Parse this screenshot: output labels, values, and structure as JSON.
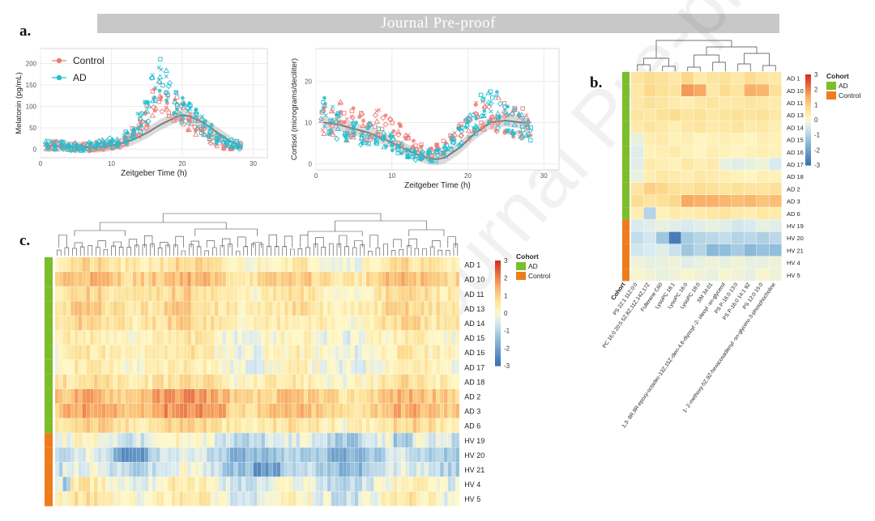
{
  "header": {
    "banner": "Journal Pre-proof"
  },
  "labels": {
    "a": "a.",
    "b": "b.",
    "c": "c."
  },
  "watermark": "Journal Pre-proof",
  "chart_data": [
    {
      "id": "melatonin",
      "type": "scatter",
      "xlabel": "Zeitgeber Time (h)",
      "ylabel": "Melatonin (pg/mL)",
      "xlim": [
        0,
        32
      ],
      "ylim": [
        -20,
        235
      ],
      "xticks": [
        0,
        10,
        20,
        30
      ],
      "yticks": [
        0,
        50,
        100,
        150,
        200
      ],
      "legend_position": "top-left",
      "series": [
        {
          "name": "Control",
          "color": "#f07a74",
          "x": [
            1,
            2,
            3,
            4,
            5,
            6,
            7,
            8,
            9,
            10,
            11,
            12,
            13,
            14,
            15,
            16,
            17,
            18,
            19,
            20,
            21,
            22,
            23,
            24,
            25,
            26,
            27,
            28
          ],
          "y": [
            8,
            10,
            9,
            7,
            6,
            5,
            6,
            8,
            10,
            12,
            15,
            25,
            35,
            50,
            75,
            110,
            125,
            105,
            95,
            80,
            65,
            55,
            45,
            30,
            20,
            12,
            9,
            7
          ]
        },
        {
          "name": "AD",
          "color": "#1fbfd1",
          "x": [
            1,
            2,
            3,
            4,
            5,
            6,
            7,
            8,
            9,
            10,
            11,
            12,
            13,
            14,
            15,
            16,
            17,
            18,
            19,
            20,
            21,
            22,
            23,
            24,
            25,
            26,
            27,
            28
          ],
          "y": [
            12,
            10,
            8,
            7,
            5,
            6,
            7,
            9,
            11,
            14,
            18,
            28,
            40,
            60,
            90,
            150,
            180,
            140,
            110,
            95,
            85,
            70,
            55,
            40,
            28,
            18,
            12,
            9
          ]
        }
      ],
      "trend": {
        "x": [
          1,
          3,
          5,
          7,
          9,
          11,
          13,
          15,
          17,
          19,
          20,
          21,
          23,
          25,
          27,
          28
        ],
        "y": [
          8,
          7,
          5,
          4,
          6,
          12,
          22,
          38,
          58,
          74,
          80,
          77,
          62,
          38,
          16,
          8
        ]
      }
    },
    {
      "id": "cortisol",
      "type": "scatter",
      "xlabel": "Zeitgeber Time (h)",
      "ylabel": "Cortisol (micrograms/deciliter)",
      "xlim": [
        0,
        32
      ],
      "ylim": [
        -1.5,
        28
      ],
      "xticks": [
        0,
        10,
        20,
        30
      ],
      "yticks": [
        0,
        10,
        20
      ],
      "series": [
        {
          "name": "Control",
          "color": "#f07a74",
          "x": [
            1,
            2,
            3,
            4,
            5,
            6,
            7,
            8,
            9,
            10,
            11,
            12,
            13,
            14,
            15,
            16,
            17,
            18,
            19,
            20,
            21,
            22,
            23,
            24,
            25,
            26,
            27,
            28
          ],
          "y": [
            11,
            10,
            12,
            9,
            10,
            9,
            8,
            10,
            9,
            8,
            7,
            5,
            4,
            3,
            3,
            3,
            4,
            6,
            7,
            9,
            11,
            12,
            13,
            12,
            11,
            10,
            10,
            9
          ]
        },
        {
          "name": "AD",
          "color": "#1fbfd1",
          "x": [
            1,
            2,
            3,
            4,
            5,
            6,
            7,
            8,
            9,
            10,
            11,
            12,
            13,
            14,
            15,
            16,
            17,
            18,
            19,
            20,
            21,
            22,
            23,
            24,
            25,
            26,
            27,
            28
          ],
          "y": [
            13,
            11,
            9,
            8,
            8,
            7,
            7,
            6,
            6,
            5,
            4,
            3,
            2,
            2,
            2,
            2,
            3,
            5,
            7,
            9,
            11,
            13,
            14,
            13,
            11,
            10,
            9,
            8
          ]
        }
      ],
      "trend": {
        "x": [
          1,
          3,
          5,
          7,
          9,
          11,
          13,
          15,
          16,
          17,
          19,
          21,
          23,
          25,
          27,
          28
        ],
        "y": [
          10,
          9.5,
          8.5,
          7.5,
          6,
          4.2,
          2.5,
          1.2,
          1.1,
          1.5,
          4,
          7.5,
          10,
          10.5,
          10,
          10
        ]
      }
    },
    {
      "id": "heatmap_b",
      "type": "heatmap",
      "rows": [
        "AD 1",
        "AD 10",
        "AD 11",
        "AD 13",
        "AD 14",
        "AD 15",
        "AD 16",
        "AD 17",
        "AD 18",
        "AD 2",
        "AD 3",
        "AD 6",
        "HV 19",
        "HV 20",
        "HV 21",
        "HV 4",
        "HV 5"
      ],
      "row_groups": [
        "AD",
        "AD",
        "AD",
        "AD",
        "AD",
        "AD",
        "AD",
        "AD",
        "AD",
        "AD",
        "AD",
        "AD",
        "Control",
        "Control",
        "Control",
        "Control",
        "Control"
      ],
      "columns": [
        "PS 22:1 11Z:0:0",
        "PC 16:0 20:5 5Z,8Z,11Z,14Z,17Z",
        "Fullerene C60",
        "LysoPC 18:1",
        "LysoPC 16:0",
        "LysoPC 18:0",
        "SM 34:01",
        "1,3- 8R,9R-epoxy-octadec-13Z,15Z-dien-4,6-diynoyl -2- oleoyl -sn-glycerol",
        "PS P-16:0 13:0",
        "PS P-16:0 14:1 9Z",
        "PS 12:0 15:0",
        "1- 2-methoxy-5Z,9Z-hexacosadienyl -sn-glycero-3-phosphocholine"
      ],
      "cohort_axis_label": "Cohort",
      "color_scale": {
        "min": -3,
        "max": 3,
        "ticks": [
          3,
          2,
          1,
          0,
          -1,
          -2,
          -3
        ]
      },
      "legend": {
        "title": "Cohort",
        "items": [
          "AD",
          "Control"
        ]
      },
      "values": [
        [
          0.6,
          0.8,
          0.7,
          0.5,
          0.9,
          0.4,
          0.6,
          0.7,
          0.5,
          0.8,
          0.6,
          0.5
        ],
        [
          0.5,
          0.9,
          0.7,
          0.6,
          1.8,
          1.6,
          0.5,
          0.8,
          0.6,
          1.5,
          1.4,
          0.7
        ],
        [
          0.5,
          0.7,
          0.6,
          0.4,
          0.3,
          0.5,
          0.6,
          0.4,
          0.5,
          0.6,
          0.5,
          0.4
        ],
        [
          0.6,
          0.5,
          0.7,
          0.8,
          0.6,
          0.7,
          0.5,
          0.6,
          0.7,
          0.6,
          0.7,
          0.5
        ],
        [
          0.4,
          0.6,
          0.5,
          0.3,
          0.5,
          0.6,
          0.4,
          0.5,
          0.6,
          0.4,
          0.5,
          0.3
        ],
        [
          -0.3,
          0.3,
          0.4,
          0.2,
          0.3,
          0.1,
          0.2,
          0.3,
          0.2,
          0.1,
          0.3,
          0.2
        ],
        [
          -0.4,
          0.2,
          0.3,
          0.4,
          0.2,
          0.1,
          0.3,
          0.2,
          0.1,
          0.2,
          0.3,
          0.2
        ],
        [
          -0.4,
          0.4,
          0.3,
          0.2,
          0.5,
          0.3,
          0.4,
          -0.3,
          -0.4,
          -0.3,
          -0.2,
          -0.5
        ],
        [
          -0.3,
          0.3,
          0.5,
          0.4,
          0.3,
          0.5,
          0.4,
          0.3,
          0.2,
          0.1,
          0.3,
          0.2
        ],
        [
          0.6,
          1.0,
          0.9,
          0.7,
          0.6,
          0.8,
          0.7,
          0.6,
          0.7,
          0.6,
          0.6,
          0.7
        ],
        [
          0.8,
          0.6,
          0.7,
          0.9,
          1.6,
          1.5,
          1.5,
          1.4,
          1.3,
          1.4,
          1.2,
          1.3
        ],
        [
          0.3,
          -1.0,
          0.2,
          0.4,
          0.3,
          0.4,
          0.5,
          0.6,
          0.4,
          0.3,
          0.5,
          0.4
        ],
        [
          -0.5,
          -0.4,
          -0.3,
          -0.4,
          -0.5,
          -0.4,
          -0.3,
          -0.4,
          -0.6,
          -0.5,
          -0.3,
          -0.4
        ],
        [
          -0.8,
          -0.6,
          -1.3,
          -2.8,
          -1.2,
          -1.0,
          -0.9,
          -0.8,
          -1.0,
          -0.9,
          -1.1,
          -0.9
        ],
        [
          -0.6,
          -0.5,
          -0.4,
          -0.7,
          -1.3,
          -1.0,
          -1.6,
          -1.5,
          -1.2,
          -1.6,
          -1.4,
          -1.5
        ],
        [
          -0.2,
          -0.3,
          -0.3,
          -0.2,
          -0.4,
          -0.3,
          -0.2,
          -0.3,
          -0.2,
          -0.3,
          -0.3,
          -0.2
        ],
        [
          -0.1,
          -0.2,
          -0.3,
          -0.2,
          -0.1,
          -0.2,
          -0.3,
          -0.1,
          -0.2,
          -0.3,
          -0.1,
          -0.2
        ]
      ]
    },
    {
      "id": "heatmap_c",
      "type": "heatmap",
      "rows": [
        "AD 1",
        "AD 10",
        "AD 11",
        "AD 13",
        "AD 14",
        "AD 15",
        "AD 16",
        "AD 17",
        "AD 18",
        "AD 2",
        "AD 3",
        "AD 6",
        "HV 19",
        "HV 20",
        "HV 21",
        "HV 4",
        "HV 5"
      ],
      "row_groups": [
        "AD",
        "AD",
        "AD",
        "AD",
        "AD",
        "AD",
        "AD",
        "AD",
        "AD",
        "AD",
        "AD",
        "AD",
        "Control",
        "Control",
        "Control",
        "Control",
        "Control"
      ],
      "n_columns": 104,
      "color_scale": {
        "min": -3,
        "max": 3,
        "ticks": [
          3,
          2,
          1,
          0,
          -1,
          -2,
          -3
        ]
      },
      "legend": {
        "title": "Cohort",
        "items": [
          "AD",
          "Control"
        ]
      },
      "row_profiles": [
        0.4,
        1.0,
        0.5,
        0.6,
        0.5,
        0.1,
        0.2,
        0.1,
        0.4,
        1.1,
        1.2,
        0.6,
        -0.5,
        -1.1,
        -0.9,
        -0.2,
        0.0
      ]
    }
  ],
  "colors": {
    "ad_group": "#7cbd2c",
    "control_group": "#ef7c1c",
    "heat_high": "#d7301f",
    "heat_mid": "#fff8c6",
    "heat_low": "#3b73b4",
    "trend_band": "#bdbdbd"
  }
}
